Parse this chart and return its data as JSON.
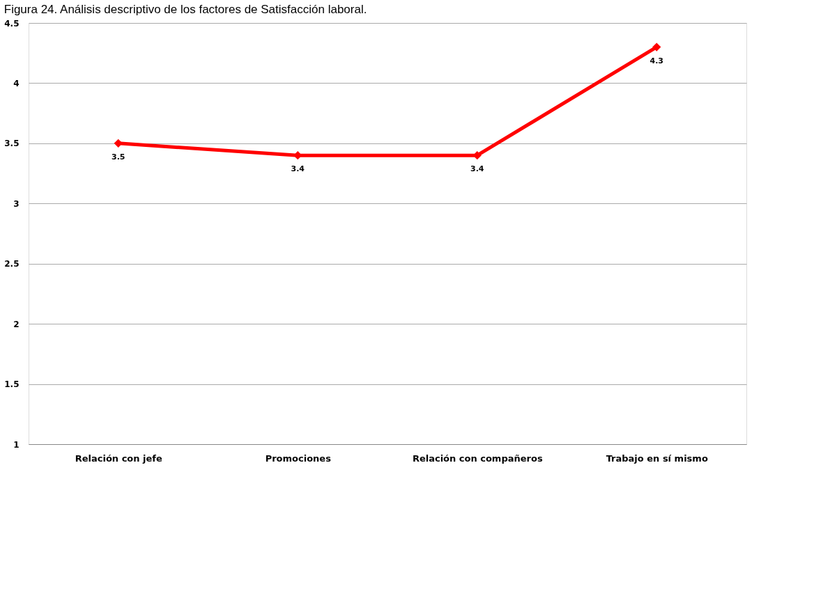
{
  "chart_data": {
    "type": "line",
    "title": "Figura 24. Análisis descriptivo de los factores de Satisfacción laboral.",
    "categories": [
      "Relación con jefe",
      "Promociones",
      "Relación con compañeros",
      "Trabajo en sí mismo"
    ],
    "series": [
      {
        "color": "#ff0000",
        "values": [
          3.5,
          3.4,
          3.4,
          4.3
        ]
      }
    ],
    "ylim": [
      1,
      4.5
    ],
    "yticks": [
      1,
      1.5,
      2,
      2.5,
      3,
      3.5,
      4,
      4.5
    ],
    "grid": "y",
    "marker": "diamond",
    "line_style": "solid",
    "data_labels": true,
    "legend": false
  }
}
